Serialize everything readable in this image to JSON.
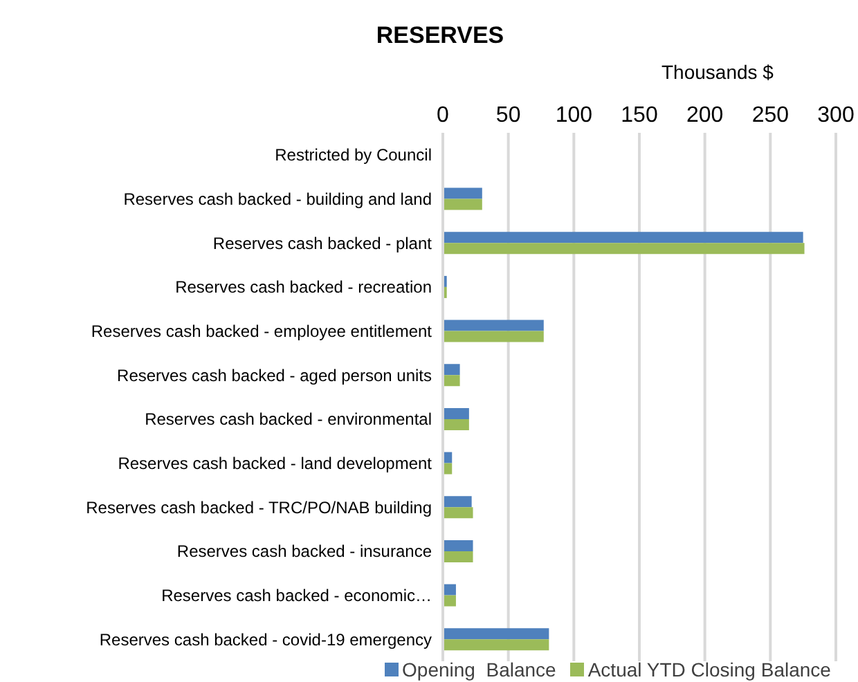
{
  "chart_data": {
    "type": "bar",
    "orientation": "horizontal",
    "title": "RESERVES",
    "xlabel": "Thousands $",
    "categories": [
      "Restricted by Council",
      "Reserves cash backed - building and land",
      "Reserves cash backed - plant",
      "Reserves cash backed - recreation",
      "Reserves cash backed - employee entitlement",
      "Reserves cash backed - aged person units",
      "Reserves cash backed - environmental",
      "Reserves cash backed - land development",
      "Reserves cash backed - TRC/PO/NAB building",
      "Reserves cash backed - insurance",
      "Reserves cash backed - economic…",
      "Reserves cash backed - covid-19 emergency"
    ],
    "series": [
      {
        "name": "Opening  Balance",
        "color": "#4f81bd",
        "values": [
          0,
          30,
          275,
          3,
          77,
          13,
          20,
          7,
          22,
          23,
          10,
          81
        ]
      },
      {
        "name": "Actual YTD Closing Balance",
        "color": "#9bbb59",
        "values": [
          0,
          30,
          276,
          3,
          77,
          13,
          20,
          7,
          23,
          23,
          10,
          81
        ]
      }
    ],
    "xlim": [
      0,
      300
    ],
    "xticks": [
      0,
      50,
      100,
      150,
      200,
      250,
      300
    ],
    "grid": "x",
    "legend": "bottom"
  }
}
